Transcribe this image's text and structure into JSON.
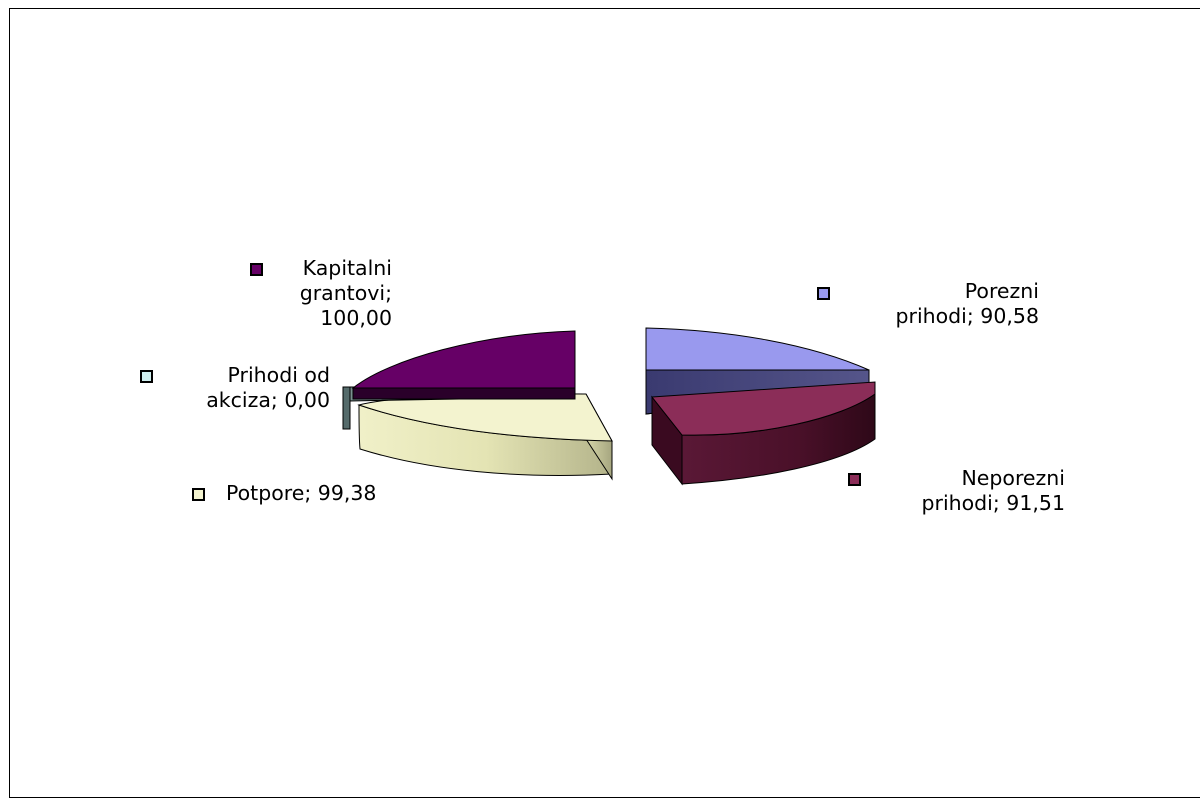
{
  "chart_data": {
    "type": "pie",
    "style": "3d-exploded",
    "series": [
      {
        "name": "",
        "categories": [
          "Porezni prihodi",
          "Neporezni prihodi",
          "Potpore",
          "Prihodi od akciza",
          "Kapitalni grantovi"
        ],
        "values": [
          90.58,
          91.51,
          99.38,
          0.0,
          100.0
        ],
        "data_labels": [
          [
            "Porezni",
            "prihodi; 90,58"
          ],
          [
            "Neporezni",
            "prihodi; 91,51"
          ],
          [
            "Potpore; 99,38"
          ],
          [
            "Prihodi od",
            "akciza; 0,00"
          ],
          [
            "Kapitalni",
            "grantovi;",
            "100,00"
          ]
        ],
        "colors": [
          "#9999ee",
          "#8b2d58",
          "#f3f3cf",
          "#cfeeee",
          "#660066"
        ]
      }
    ],
    "legend": "none"
  }
}
